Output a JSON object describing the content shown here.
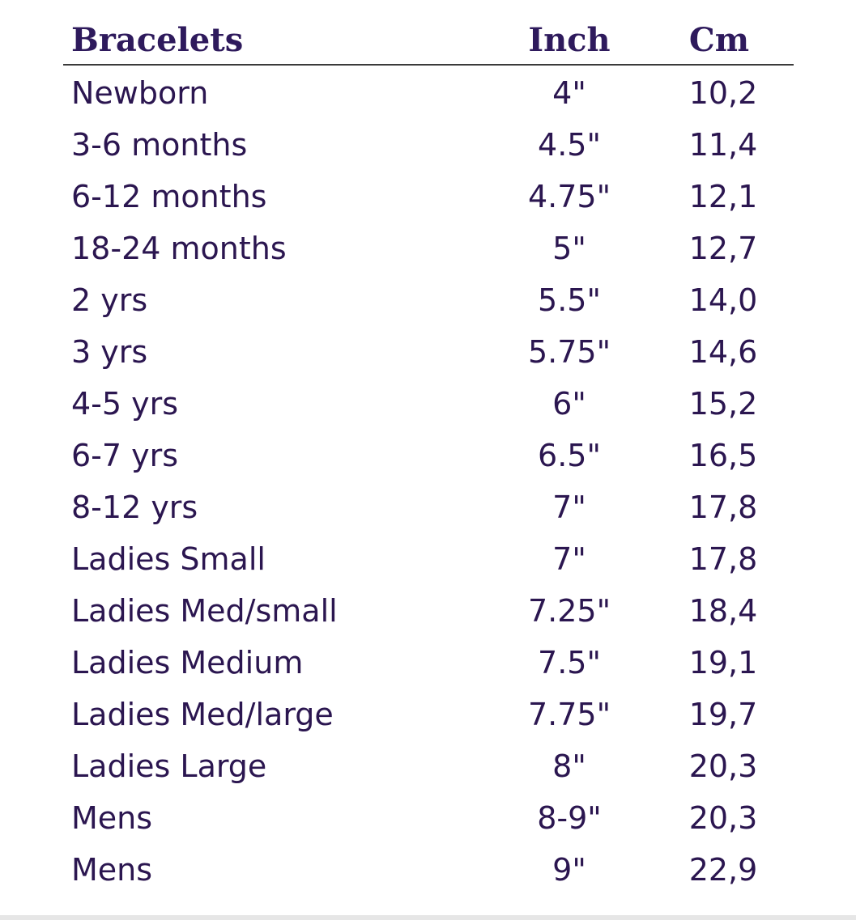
{
  "table": {
    "headers": {
      "label": "Bracelets",
      "inch": "Inch",
      "cm": "Cm"
    },
    "rows": [
      {
        "label": "Newborn",
        "inch": "4\"",
        "cm": "10,2"
      },
      {
        "label": "3-6 months",
        "inch": "4.5\"",
        "cm": "11,4"
      },
      {
        "label": "6-12 months",
        "inch": "4.75\"",
        "cm": "12,1"
      },
      {
        "label": "18-24 months",
        "inch": "5\"",
        "cm": "12,7"
      },
      {
        "label": "2 yrs",
        "inch": "5.5\"",
        "cm": "14,0"
      },
      {
        "label": "3 yrs",
        "inch": "5.75\"",
        "cm": "14,6"
      },
      {
        "label": "4-5 yrs",
        "inch": "6\"",
        "cm": "15,2"
      },
      {
        "label": "6-7 yrs",
        "inch": "6.5\"",
        "cm": "16,5"
      },
      {
        "label": "8-12 yrs",
        "inch": "7\"",
        "cm": "17,8"
      },
      {
        "label": "Ladies Small",
        "inch": "7\"",
        "cm": "17,8"
      },
      {
        "label": "Ladies Med/small",
        "inch": "7.25\"",
        "cm": "18,4"
      },
      {
        "label": "Ladies Medium",
        "inch": "7.5\"",
        "cm": "19,1"
      },
      {
        "label": "Ladies Med/large",
        "inch": "7.75\"",
        "cm": "19,7"
      },
      {
        "label": "Ladies Large",
        "inch": "8\"",
        "cm": "20,3"
      },
      {
        "label": "Mens",
        "inch": "8-9\"",
        "cm": "20,3"
      },
      {
        "label": "Mens",
        "inch": "9\"",
        "cm": "22,9"
      }
    ]
  },
  "colors": {
    "text": "#2b1650",
    "header_text": "#2e1a5c",
    "rule": "#3a3a3a"
  }
}
